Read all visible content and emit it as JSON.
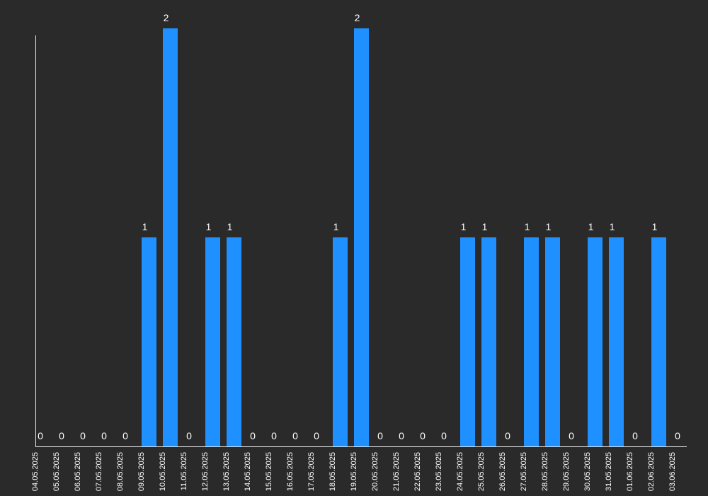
{
  "colors": {
    "background": "#2a2a2a",
    "bar": "#1e90ff",
    "axis": "#e6e6e6",
    "text": "#ffffff"
  },
  "chart_data": {
    "type": "bar",
    "title": "",
    "xlabel": "",
    "ylabel": "",
    "ylim": [
      0,
      2
    ],
    "grid": false,
    "legend": "none",
    "categories": [
      "04.05.2025",
      "05.05.2025",
      "06.05.2025",
      "07.05.2025",
      "08.05.2025",
      "09.05.2025",
      "10.05.2025",
      "11.05.2025",
      "12.05.2025",
      "13.05.2025",
      "14.05.2025",
      "15.05.2025",
      "16.05.2025",
      "17.05.2025",
      "18.05.2025",
      "19.05.2025",
      "20.05.2025",
      "21.05.2025",
      "22.05.2025",
      "23.05.2025",
      "24.05.2025",
      "25.05.2025",
      "26.05.2025",
      "27.05.2025",
      "28.05.2025",
      "29.05.2025",
      "30.05.2025",
      "31.05.2025",
      "01.06.2025",
      "02.06.2025",
      "03.06.2025"
    ],
    "values": [
      0,
      0,
      0,
      0,
      0,
      1,
      2,
      0,
      1,
      1,
      0,
      0,
      0,
      0,
      1,
      2,
      0,
      0,
      0,
      0,
      1,
      1,
      0,
      1,
      1,
      0,
      1,
      1,
      0,
      1,
      0
    ]
  }
}
